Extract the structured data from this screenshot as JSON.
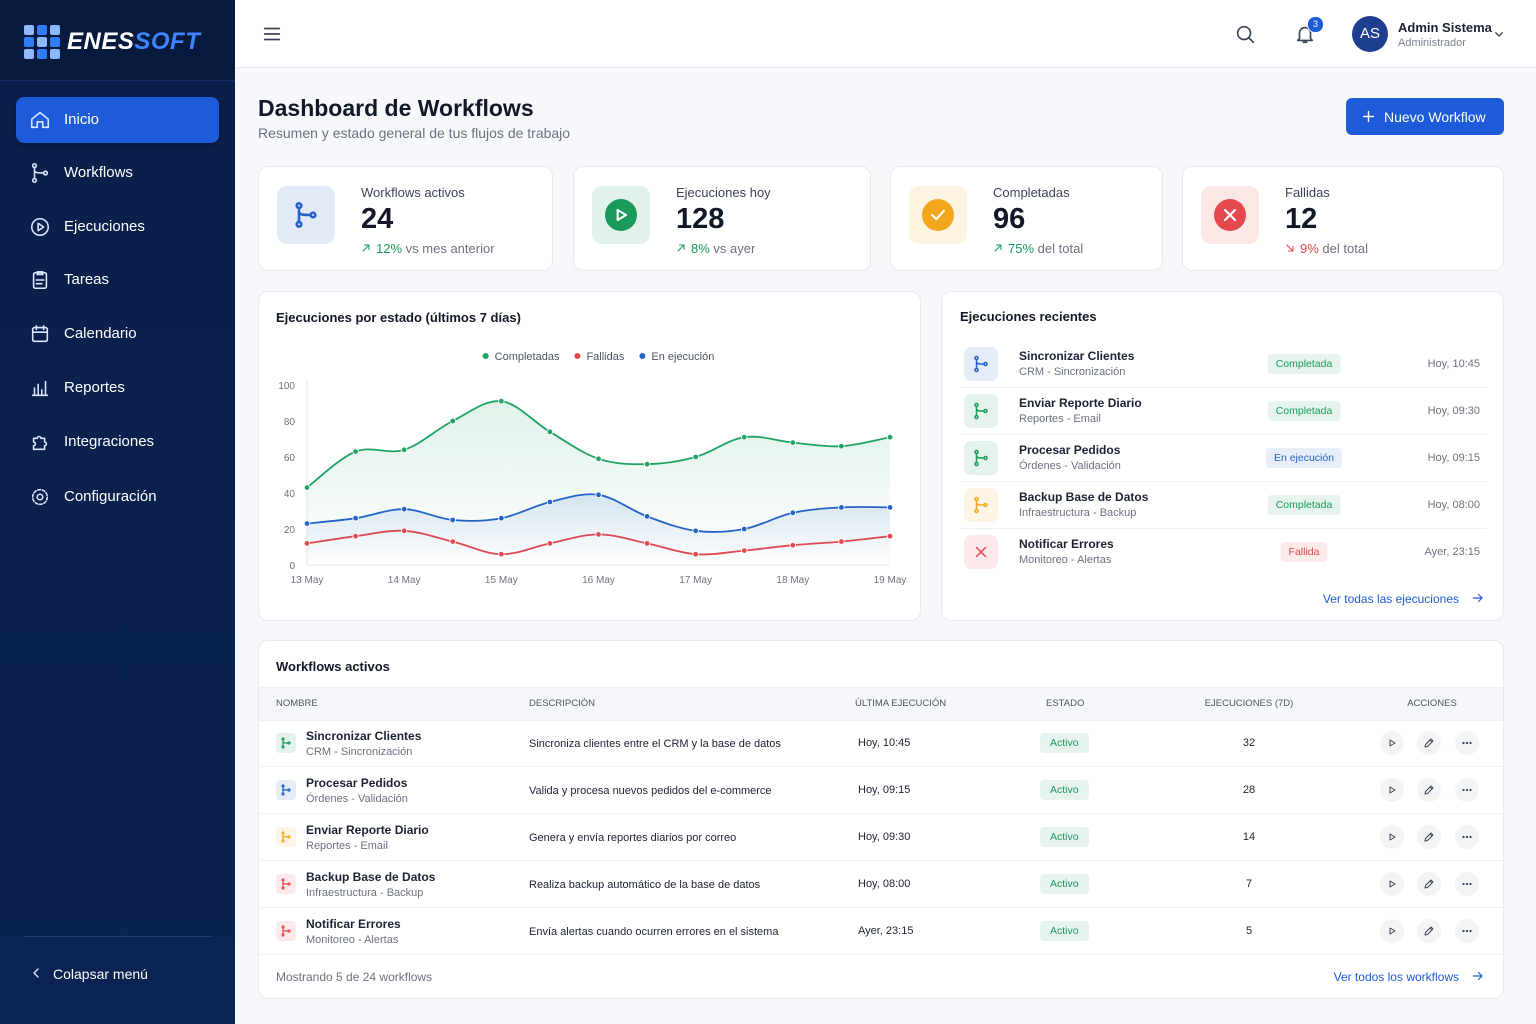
{
  "brand": {
    "part1": "ENES",
    "part2": "SOFT"
  },
  "nav": [
    "Inicio",
    "Workflows",
    "Ejecuciones",
    "Tareas",
    "Calendario",
    "Reportes",
    "Integraciones",
    "Configuración"
  ],
  "collapse": "Colapsar menú",
  "header": {
    "notifications": 3,
    "avatar": "AS",
    "user": "Admin Sistema",
    "role": "Administrador"
  },
  "page": {
    "title": "Dashboard de Workflows",
    "subtitle": "Resumen y estado general de tus flujos de trabajo",
    "new_button": "Nuevo Workflow"
  },
  "stats": [
    {
      "label": "Workflows activos",
      "value": 24,
      "change": "12%",
      "note": "vs mes anterior",
      "trend": "up",
      "color": "#2563c9"
    },
    {
      "label": "Ejecuciones hoy",
      "value": 128,
      "change": "8%",
      "note": "vs ayer",
      "trend": "up",
      "color": "#1a9a5a"
    },
    {
      "label": "Completadas",
      "value": 96,
      "change": "75%",
      "note": "del total",
      "trend": "up",
      "color": "#f2a81d"
    },
    {
      "label": "Fallidas",
      "value": 12,
      "change": "9%",
      "note": "del total",
      "trend": "down",
      "color": "#e5484d"
    }
  ],
  "chart_data": {
    "type": "line",
    "title": "Ejecuciones por estado (últimos 7 días)",
    "categories": [
      "13 May",
      null,
      "14 May",
      null,
      "15 May",
      null,
      "16 May",
      null,
      "17 May",
      null,
      "18 May",
      null,
      "19 May"
    ],
    "series": [
      {
        "name": "Completadas",
        "color": "#1fa463",
        "values": [
          43,
          63,
          64,
          80,
          91,
          74,
          59,
          56,
          60,
          71,
          68,
          66,
          71
        ]
      },
      {
        "name": "Fallidas",
        "color": "#e5484d",
        "values": [
          12,
          16,
          19,
          13,
          6,
          12,
          17,
          12,
          6,
          8,
          11,
          13,
          16
        ]
      },
      {
        "name": "En ejecución",
        "color": "#2563c9",
        "values": [
          23,
          26,
          31,
          25,
          26,
          35,
          39,
          27,
          19,
          20,
          29,
          32,
          32
        ]
      }
    ],
    "ylim": [
      0,
      100
    ],
    "yticks": [
      0,
      20,
      40,
      60,
      80,
      100
    ],
    "grid": false,
    "legend": "top"
  },
  "recent": {
    "title": "Ejecuciones recientes",
    "items": [
      {
        "name": "Sincronizar Clientes",
        "sub": "CRM - Sincronización",
        "status": "Completada",
        "time": "Hoy, 10:45",
        "icon_color": "#2563c9",
        "status_color": "#1a9a5a"
      },
      {
        "name": "Enviar Reporte Diario",
        "sub": "Reportes - Email",
        "status": "Completada",
        "time": "Hoy, 09:30",
        "icon_color": "#1a9a5a",
        "status_color": "#1a9a5a"
      },
      {
        "name": "Procesar Pedidos",
        "sub": "Órdenes - Validación",
        "status": "En ejecución",
        "time": "Hoy, 09:15",
        "icon_color": "#1a9a5a",
        "status_color": "#2563c9"
      },
      {
        "name": "Backup Base de Datos",
        "sub": "Infraestructura - Backup",
        "status": "Completada",
        "time": "Hoy, 08:00",
        "icon_color": "#f2a81d",
        "status_color": "#1a9a5a"
      },
      {
        "name": "Notificar Errores",
        "sub": "Monitoreo - Alertas",
        "status": "Fallida",
        "time": "Ayer, 23:15",
        "icon_color": "#e5484d",
        "status_color": "#e5484d"
      }
    ],
    "link": "Ver todas las ejecuciones"
  },
  "table": {
    "title": "Workflows activos",
    "columns": [
      "NOMBRE",
      "DESCRIPCIÓN",
      "ÚLTIMA EJECUCIÓN",
      "ESTADO",
      "EJECUCIONES (7D)",
      "ACCIONES"
    ],
    "rows": [
      {
        "name": "Sincronizar Clientes",
        "sub": "CRM - Sincronización",
        "description": "Sincroniza clientes entre el CRM y la base de datos",
        "last": "Hoy, 10:45",
        "status": "Activo",
        "runs": 32,
        "icon_color": "#1a9a5a"
      },
      {
        "name": "Procesar Pedidos",
        "sub": "Órdenes - Validación",
        "description": "Valida y procesa nuevos pedidos del e-commerce",
        "last": "Hoy, 09:15",
        "status": "Activo",
        "runs": 28,
        "icon_color": "#2563c9"
      },
      {
        "name": "Enviar Reporte Diario",
        "sub": "Reportes - Email",
        "description": "Genera y envía reportes diarios por correo",
        "last": "Hoy, 09:30",
        "status": "Activo",
        "runs": 14,
        "icon_color": "#f2a81d"
      },
      {
        "name": "Backup Base de Datos",
        "sub": "Infraestructura - Backup",
        "description": "Realiza backup automático de la base de datos",
        "last": "Hoy, 08:00",
        "status": "Activo",
        "runs": 7,
        "icon_color": "#e5484d"
      },
      {
        "name": "Notificar Errores",
        "sub": "Monitoreo - Alertas",
        "description": "Envía alertas cuando ocurren errores en el sistema",
        "last": "Ayer, 23:15",
        "status": "Activo",
        "runs": 5,
        "icon_color": "#e5484d"
      }
    ],
    "footer": "Mostrando 5 de 24 workflows",
    "link": "Ver todos los workflows"
  }
}
